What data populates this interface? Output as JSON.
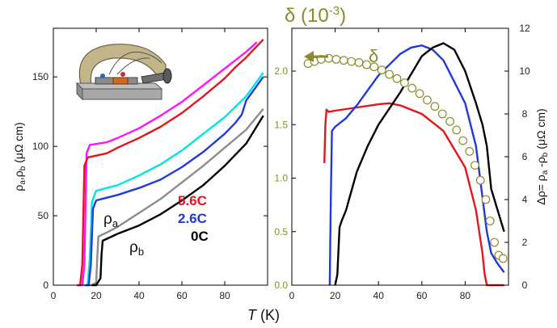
{
  "chart_data": [
    {
      "type": "line",
      "panel": "left",
      "xlabel_italic": "T",
      "xlabel_unit": "(K)",
      "ylabel": "ρa,ρb (μΩ cm)",
      "xlim": [
        0,
        100
      ],
      "ylim": [
        0,
        185
      ],
      "x_ticks": [
        0,
        20,
        40,
        60,
        80
      ],
      "y_ticks": [
        0,
        50,
        100,
        150
      ],
      "x_tick_labels": [
        "0",
        "20",
        "40",
        "60",
        "80"
      ],
      "y_tick_labels": [
        "0",
        "50",
        "100",
        "150"
      ],
      "legend": [
        {
          "name": "5.6C",
          "color": "#e8141b"
        },
        {
          "name": "2.6C",
          "color": "#1f3ad8"
        },
        {
          "name": "0C",
          "color": "#000000"
        }
      ],
      "annotations": [
        "ρa",
        "ρb"
      ],
      "inset": "uniaxial strain clamp device",
      "series": [
        {
          "label": "ρa 0C",
          "color": "#8c8c8c",
          "x": [
            16,
            18,
            20,
            20.5,
            21,
            25,
            30,
            40,
            50,
            60,
            70,
            80,
            90,
            98
          ],
          "y": [
            0,
            0,
            2,
            20,
            35,
            38,
            42,
            52,
            62,
            74,
            86,
            99,
            112,
            127
          ]
        },
        {
          "label": "ρb 0C",
          "color": "#000000",
          "x": [
            18,
            20,
            22,
            22.5,
            23,
            30,
            40,
            50,
            60,
            70,
            80,
            90,
            98
          ],
          "y": [
            0,
            0,
            5,
            22,
            32,
            37,
            43,
            51,
            61,
            72,
            86,
            102,
            122
          ]
        },
        {
          "label": "ρa 2.6C",
          "color": "#00e5e5",
          "x": [
            14,
            16,
            17,
            18,
            20,
            30,
            40,
            50,
            60,
            70,
            80,
            90,
            98
          ],
          "y": [
            0,
            0,
            20,
            60,
            68,
            72,
            79,
            87,
            97,
            109,
            121,
            136,
            153
          ]
        },
        {
          "label": "ρb 2.6C",
          "color": "#1f3ad8",
          "x": [
            15,
            16.5,
            17.5,
            18.5,
            20,
            30,
            40,
            50,
            60,
            70,
            80,
            85,
            88,
            90,
            98
          ],
          "y": [
            0,
            0,
            15,
            55,
            61,
            65,
            70,
            76,
            85,
            96,
            109,
            117,
            123,
            133,
            150
          ]
        },
        {
          "label": "ρa 5.6C",
          "color": "#ff14ff",
          "x": [
            12,
            13.5,
            14.5,
            15.5,
            17,
            25,
            30,
            40,
            50,
            60,
            70,
            80,
            90,
            95
          ],
          "y": [
            0,
            0,
            15,
            95,
            101,
            103,
            106,
            113,
            122,
            132,
            144,
            156,
            168,
            175
          ]
        },
        {
          "label": "ρb 5.6C",
          "color": "#e8141b",
          "x": [
            11,
            12.5,
            13.5,
            14.5,
            16,
            25,
            30,
            40,
            50,
            60,
            70,
            80,
            85,
            90,
            98
          ],
          "y": [
            0,
            0,
            15,
            86,
            92,
            95,
            99,
            106,
            114,
            124,
            136,
            149,
            157,
            164,
            177
          ]
        }
      ]
    },
    {
      "type": "line",
      "panel": "right",
      "title": "δ (10-3)",
      "xlabel_italic": "T",
      "xlabel_unit": "(K)",
      "ylabel_left": "δ (10-3)",
      "ylabel_right": "Δρ= ρa -ρb (μΩ cm)",
      "xlim": [
        0,
        100
      ],
      "ylim_left": [
        0,
        2.4
      ],
      "ylim_right": [
        0,
        12
      ],
      "x_ticks": [
        0,
        20,
        40,
        60,
        80
      ],
      "y_ticks_left": [
        0.0,
        0.5,
        1.0,
        1.5,
        2.0
      ],
      "y_ticks_right": [
        0,
        2,
        4,
        6,
        8,
        10,
        12
      ],
      "x_tick_labels": [
        "0",
        "20",
        "40",
        "60",
        "80"
      ],
      "y_tick_labels_left": [
        "0.0",
        "0.5",
        "1.0",
        "1.5",
        "2.0"
      ],
      "y_tick_labels_right": [
        "0",
        "2",
        "4",
        "6",
        "8",
        "10",
        "12"
      ],
      "annotations": [
        "δ"
      ],
      "arrow_direction": "left",
      "delta_color": "#8b8b2e",
      "series": [
        {
          "label": "Δρ 5.6C",
          "color": "#e8141b",
          "axis": "right",
          "x": [
            15,
            15.5,
            16,
            17,
            20,
            30,
            40,
            45,
            50,
            60,
            70,
            80,
            85,
            88,
            89,
            90,
            98
          ],
          "y": [
            5.7,
            7.5,
            8.2,
            8.1,
            8.15,
            8.3,
            8.45,
            8.5,
            8.4,
            8.0,
            7.2,
            5.5,
            3.5,
            1.5,
            0.5,
            0,
            0
          ]
        },
        {
          "label": "Δρ 2.6C",
          "color": "#1f3ad8",
          "axis": "right",
          "x": [
            17.5,
            18,
            18.5,
            20,
            25,
            30,
            40,
            50,
            55,
            60,
            65,
            70,
            80,
            85,
            90,
            92,
            95,
            98
          ],
          "y": [
            0,
            4,
            7.2,
            7.4,
            7.8,
            8.4,
            9.8,
            10.8,
            11.1,
            11.2,
            11.0,
            10.5,
            8.5,
            6.5,
            2.5,
            1.5,
            1.0,
            0.6
          ]
        },
        {
          "label": "Δρ 0C",
          "color": "#000000",
          "axis": "right",
          "x": [
            20,
            21,
            22,
            23,
            25,
            30,
            35,
            40,
            50,
            60,
            65,
            70,
            75,
            80,
            85,
            88,
            90,
            92,
            95,
            98
          ],
          "y": [
            0,
            0.5,
            2.7,
            3.0,
            3.5,
            5.3,
            6.5,
            7.5,
            9.0,
            10.7,
            11.1,
            11.3,
            11.0,
            10.0,
            8.5,
            7.5,
            6.5,
            4.5,
            3.5,
            2.5
          ]
        },
        {
          "label": "δ",
          "color": "#8b8b2e",
          "axis": "left",
          "marker": "open-circle",
          "x": [
            7.5,
            10.5,
            13.5,
            17,
            20.5,
            24,
            27.5,
            31,
            34.5,
            38,
            41.5,
            45,
            48.5,
            52,
            55.5,
            59,
            62.5,
            66,
            69.5,
            73,
            76,
            79,
            82,
            84.5,
            87,
            89.5,
            91.5,
            93.5,
            95.5,
            97.5
          ],
          "y": [
            2.07,
            2.09,
            2.11,
            2.12,
            2.11,
            2.1,
            2.09,
            2.08,
            2.06,
            2.04,
            2.01,
            1.97,
            1.93,
            1.89,
            1.84,
            1.79,
            1.73,
            1.67,
            1.6,
            1.53,
            1.45,
            1.35,
            1.25,
            1.12,
            0.98,
            0.8,
            0.6,
            0.4,
            0.28,
            0.25
          ]
        }
      ]
    }
  ]
}
